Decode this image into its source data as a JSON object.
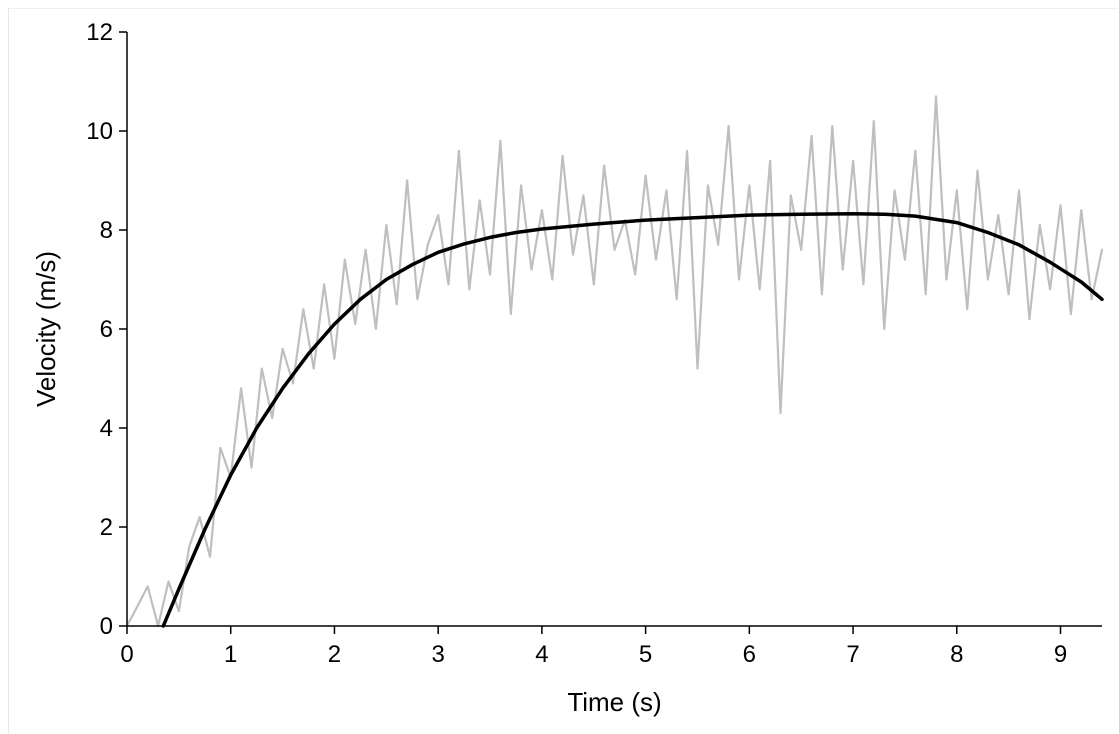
{
  "chart_data": {
    "type": "line",
    "xlabel": "Time (s)",
    "ylabel": "Velocity (m/s)",
    "xlim": [
      0,
      9.4
    ],
    "ylim": [
      0,
      12
    ],
    "xticks": [
      0,
      1,
      2,
      3,
      4,
      5,
      6,
      7,
      8,
      9
    ],
    "yticks": [
      0,
      2,
      4,
      6,
      8,
      10,
      12
    ],
    "grid": false,
    "series": [
      {
        "style": "raw",
        "color": "#bfbfbf",
        "x": [
          0.0,
          0.1,
          0.2,
          0.3,
          0.4,
          0.5,
          0.6,
          0.7,
          0.8,
          0.9,
          1.0,
          1.1,
          1.2,
          1.3,
          1.4,
          1.5,
          1.6,
          1.7,
          1.8,
          1.9,
          2.0,
          2.1,
          2.2,
          2.3,
          2.4,
          2.5,
          2.6,
          2.7,
          2.8,
          2.9,
          3.0,
          3.1,
          3.2,
          3.3,
          3.4,
          3.5,
          3.6,
          3.7,
          3.8,
          3.9,
          4.0,
          4.1,
          4.2,
          4.3,
          4.4,
          4.5,
          4.6,
          4.7,
          4.8,
          4.9,
          5.0,
          5.1,
          5.2,
          5.3,
          5.4,
          5.5,
          5.6,
          5.7,
          5.8,
          5.9,
          6.0,
          6.1,
          6.2,
          6.3,
          6.4,
          6.5,
          6.6,
          6.7,
          6.8,
          6.9,
          7.0,
          7.1,
          7.2,
          7.3,
          7.4,
          7.5,
          7.6,
          7.7,
          7.8,
          7.9,
          8.0,
          8.1,
          8.2,
          8.3,
          8.4,
          8.5,
          8.6,
          8.7,
          8.8,
          8.9,
          9.0,
          9.1,
          9.2,
          9.3,
          9.4
        ],
        "y": [
          0.0,
          0.4,
          0.8,
          0.0,
          0.9,
          0.3,
          1.6,
          2.2,
          1.4,
          3.6,
          3.0,
          4.8,
          3.2,
          5.2,
          4.2,
          5.6,
          4.9,
          6.4,
          5.2,
          6.9,
          5.4,
          7.4,
          6.1,
          7.6,
          6.0,
          8.1,
          6.5,
          9.0,
          6.6,
          7.7,
          8.3,
          6.9,
          9.6,
          6.8,
          8.6,
          7.1,
          9.8,
          6.3,
          8.9,
          7.2,
          8.4,
          7.0,
          9.5,
          7.5,
          8.7,
          6.9,
          9.3,
          7.6,
          8.2,
          7.1,
          9.1,
          7.4,
          8.8,
          6.6,
          9.6,
          5.2,
          8.9,
          7.7,
          10.1,
          7.0,
          8.9,
          6.8,
          9.4,
          4.3,
          8.7,
          7.6,
          9.9,
          6.7,
          10.1,
          7.2,
          9.4,
          6.9,
          10.2,
          6.0,
          8.8,
          7.4,
          9.6,
          6.7,
          10.7,
          7.0,
          8.8,
          6.4,
          9.2,
          7.0,
          8.3,
          6.7,
          8.8,
          6.2,
          8.1,
          6.8,
          8.5,
          6.3,
          8.4,
          6.6,
          7.6
        ]
      },
      {
        "style": "fit",
        "color": "#000000",
        "x": [
          0.35,
          0.5,
          0.75,
          1.0,
          1.25,
          1.5,
          1.75,
          2.0,
          2.25,
          2.5,
          2.75,
          3.0,
          3.25,
          3.5,
          3.75,
          4.0,
          4.5,
          5.0,
          5.5,
          6.0,
          6.5,
          7.0,
          7.3,
          7.6,
          8.0,
          8.3,
          8.6,
          8.9,
          9.2,
          9.4
        ],
        "y": [
          0.0,
          0.75,
          1.95,
          3.05,
          4.0,
          4.8,
          5.5,
          6.1,
          6.6,
          7.0,
          7.3,
          7.55,
          7.72,
          7.85,
          7.95,
          8.02,
          8.12,
          8.2,
          8.25,
          8.3,
          8.32,
          8.33,
          8.32,
          8.28,
          8.15,
          7.95,
          7.7,
          7.35,
          6.95,
          6.6
        ]
      }
    ]
  }
}
